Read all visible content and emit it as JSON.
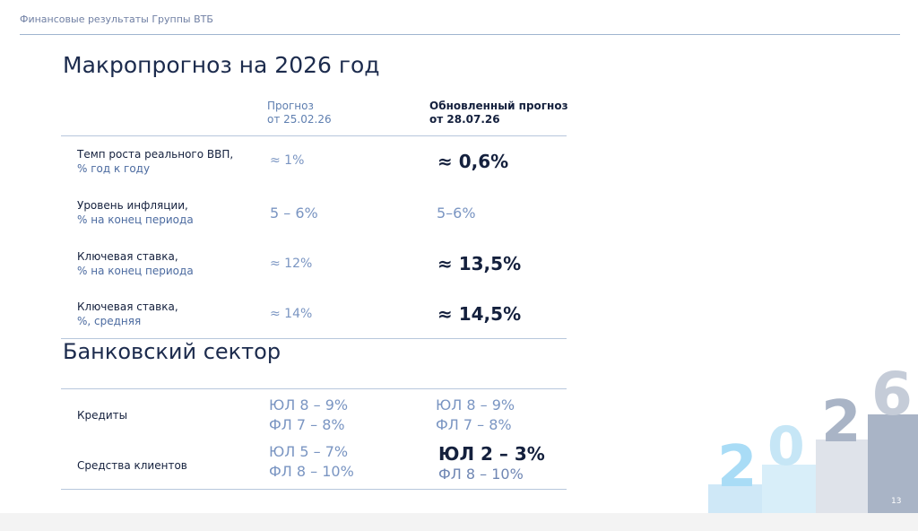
{
  "header": {
    "text": "Финансовые результаты Группы ВТБ"
  },
  "title": "Макропрогноз на 2026 год",
  "columns": {
    "old_line1": "Прогноз",
    "old_line2": "от 25.02.26",
    "new_line1": "Обновленный прогноз",
    "new_line2": "от 28.07.26"
  },
  "macro_rows": [
    {
      "label": "Темп роста реального ВВП,",
      "sub": " % год к году",
      "old": "≈ 1%",
      "new": "≈ 0,6%"
    },
    {
      "label": "Уровень инфляции,",
      "sub": "% на конец периода",
      "old": "5 – 6%",
      "new": "5–6%"
    },
    {
      "label": "Ключевая ставка,",
      "sub": "% на конец периода",
      "old": "≈ 12%",
      "new": "≈ 13,5%"
    },
    {
      "label": "Ключевая ставка,",
      "sub": "%, средняя",
      "old": "≈ 14%",
      "new": "≈ 14,5%"
    }
  ],
  "bank_section_title": "Банковский сектор",
  "bank_rows": [
    {
      "label": "Кредиты",
      "old": [
        "ЮЛ   8 – 9%",
        "ФЛ   7 – 8%"
      ],
      "new": [
        "ЮЛ   8 – 9%",
        "ФЛ   7 – 8%"
      ]
    },
    {
      "label": "Средства клиентов",
      "old": [
        "ЮЛ   5 – 7%",
        "ФЛ   8 – 10%"
      ],
      "new": [
        "ЮЛ   2 – 3%",
        "ФЛ   8 – 10%"
      ]
    }
  ],
  "decor_year_digits": [
    "2",
    "0",
    "2",
    "6"
  ],
  "page_number": "13",
  "colors": {
    "dark_navy": "#14203d",
    "muted_blue": "#7a95c2",
    "rule": "#b7c7dc",
    "deco_light": "#cfe8f7",
    "deco_mid": "#dfe3ea",
    "deco_dark": "#a9b4c6"
  }
}
